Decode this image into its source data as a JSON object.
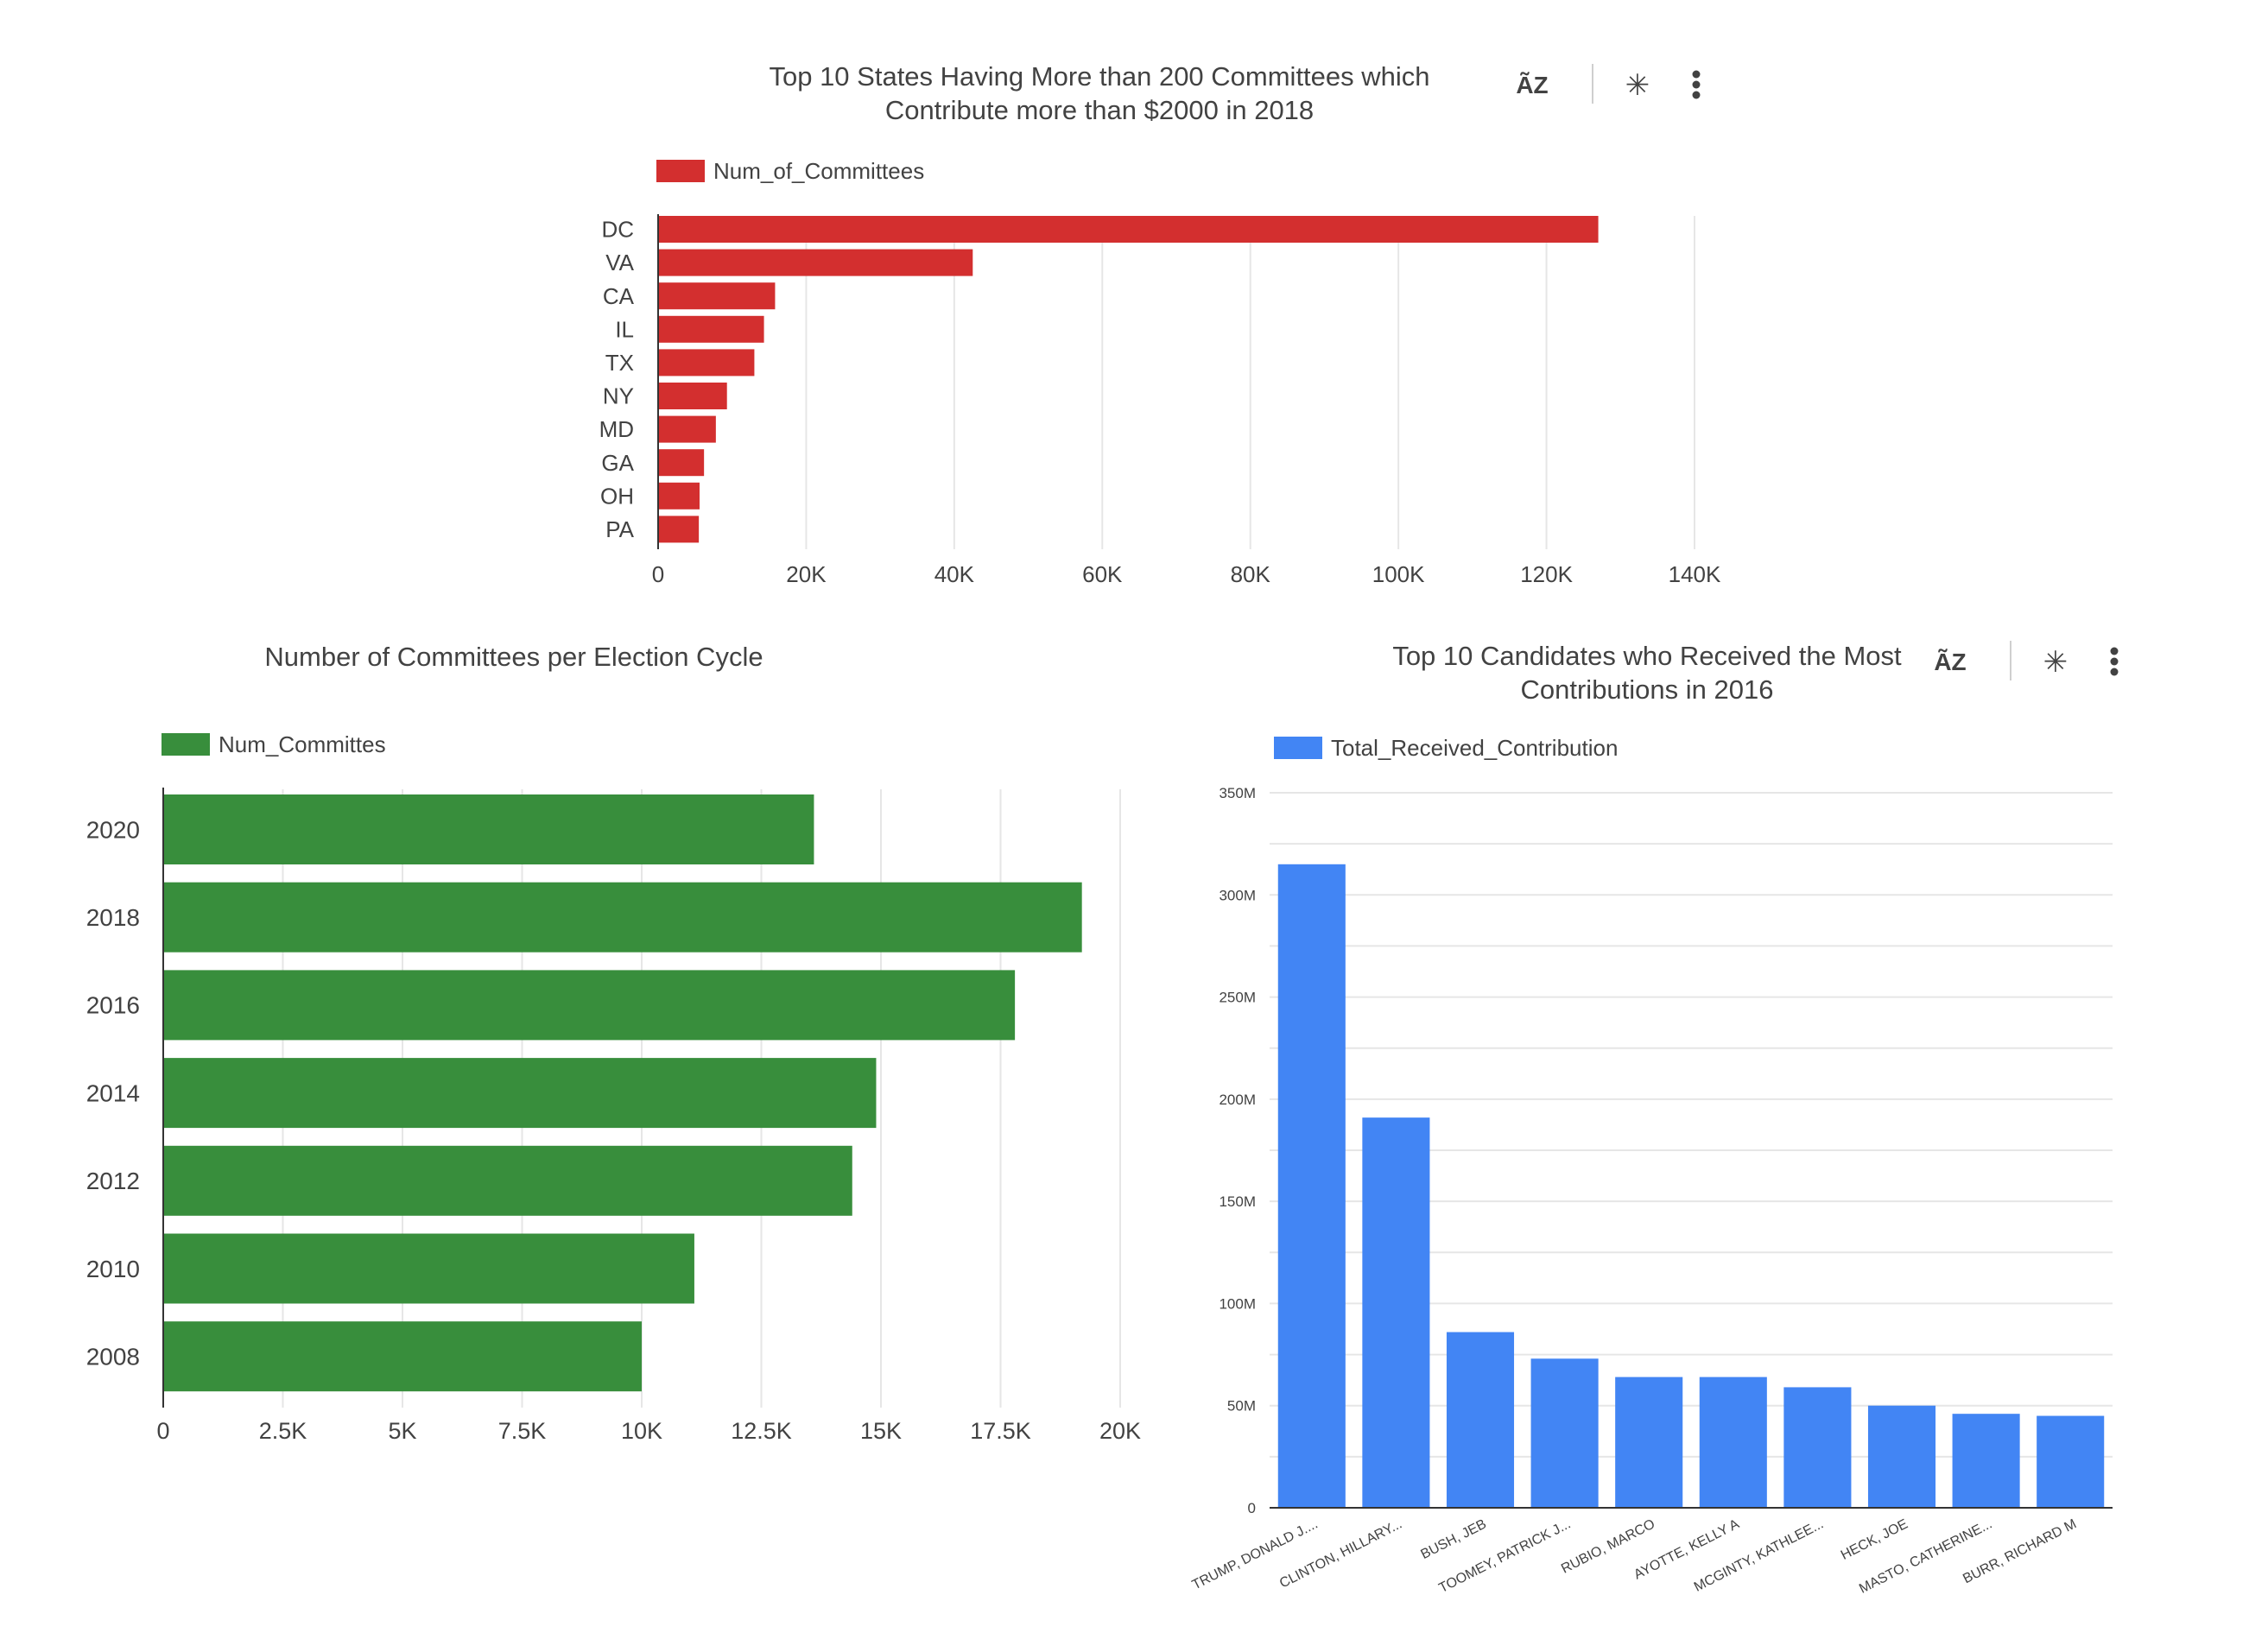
{
  "charts": [
    {
      "id": "states",
      "title_lines": [
        "Top 10 States Having More than 200 Committees which",
        "Contribute more than $2000 in 2018"
      ],
      "has_toolbar": true
    },
    {
      "id": "cycles",
      "title_lines": [
        "Number of Committees per Election Cycle"
      ],
      "has_toolbar": false
    },
    {
      "id": "candidates",
      "title_lines": [
        "Top 10 Candidates who Received the Most",
        "Contributions in 2016"
      ],
      "has_toolbar": true
    }
  ],
  "toolbar_icons": [
    "sort-az-icon",
    "explore-off-icon",
    "more-vert-icon"
  ],
  "toolbar_glyphs": {
    "sort": "ÃZ",
    "explore": "✳",
    "more": "⋮"
  },
  "chart_data": [
    {
      "type": "bar",
      "orientation": "horizontal",
      "title": "Top 10 States Having More than 200 Committees which Contribute more than $2000 in 2018",
      "categories": [
        "DC",
        "VA",
        "CA",
        "IL",
        "TX",
        "NY",
        "MD",
        "GA",
        "OH",
        "PA"
      ],
      "series": [
        {
          "name": "Num_of_Committees",
          "values": [
            127000,
            42500,
            15800,
            14300,
            13000,
            9300,
            7800,
            6200,
            5600,
            5500
          ]
        }
      ],
      "xlim": [
        0,
        140000
      ],
      "ticks": [
        0,
        20000,
        40000,
        60000,
        80000,
        100000,
        120000,
        140000
      ],
      "tick_labels": [
        "0",
        "20K",
        "40K",
        "60K",
        "80K",
        "100K",
        "120K",
        "140K"
      ],
      "color": "#d32f2f",
      "grid": true,
      "legend": "top-left"
    },
    {
      "type": "bar",
      "orientation": "horizontal",
      "title": "Number of Committees per Election Cycle",
      "categories": [
        "2020",
        "2018",
        "2016",
        "2014",
        "2012",
        "2010",
        "2008"
      ],
      "series": [
        {
          "name": "Num_Committes",
          "values": [
            13600,
            19200,
            17800,
            14900,
            14400,
            11100,
            10000
          ]
        }
      ],
      "xlim": [
        0,
        20000
      ],
      "ticks": [
        0,
        2500,
        5000,
        7500,
        10000,
        12500,
        15000,
        17500,
        20000
      ],
      "tick_labels": [
        "0",
        "2.5K",
        "5K",
        "7.5K",
        "10K",
        "12.5K",
        "15K",
        "17.5K",
        "20K"
      ],
      "color": "#388e3c",
      "grid": true,
      "legend": "top-left"
    },
    {
      "type": "bar",
      "orientation": "vertical",
      "title": "Top 10 Candidates who Received the Most Contributions in 2016",
      "categories": [
        "TRUMP, DONALD J....",
        "CLINTON, HILLARY...",
        "BUSH, JEB",
        "TOOMEY, PATRICK J...",
        "RUBIO, MARCO",
        "AYOTTE, KELLY A",
        "MCGINTY, KATHLEE...",
        "HECK, JOE",
        "MASTO, CATHERINE...",
        "BURR, RICHARD M"
      ],
      "series": [
        {
          "name": "Total_Received_Contribution",
          "values": [
            315000000,
            191000000,
            86000000,
            73000000,
            64000000,
            64000000,
            59000000,
            50000000,
            46000000,
            45000000
          ]
        }
      ],
      "ylim": [
        0,
        350000000
      ],
      "ticks": [
        0,
        50000000,
        100000000,
        150000000,
        200000000,
        250000000,
        300000000,
        350000000
      ],
      "tick_labels": [
        "0",
        "50M",
        "100M",
        "150M",
        "200M",
        "250M",
        "300M",
        "350M"
      ],
      "color": "#4285f4",
      "grid": true,
      "legend": "top-left"
    }
  ]
}
